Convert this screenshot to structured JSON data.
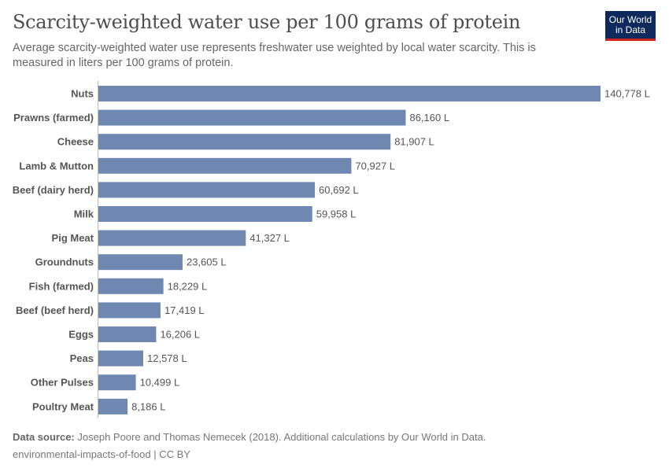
{
  "header": {
    "title": "Scarcity-weighted water use per 100 grams of protein",
    "subtitle": "Average scarcity-weighted water use represents freshwater use weighted by local water scarcity. This is measured in liters per 100 grams of protein.",
    "logo": "Our World in Data"
  },
  "chart_data": {
    "type": "bar",
    "orientation": "horizontal",
    "title": "Scarcity-weighted water use per 100 grams of protein",
    "unit": "L",
    "categories": [
      "Nuts",
      "Prawns (farmed)",
      "Cheese",
      "Lamb & Mutton",
      "Beef (dairy herd)",
      "Milk",
      "Pig Meat",
      "Groundnuts",
      "Fish (farmed)",
      "Beef (beef herd)",
      "Eggs",
      "Peas",
      "Other Pulses",
      "Poultry Meat"
    ],
    "values": [
      140778,
      86160,
      81907,
      70927,
      60692,
      59958,
      41327,
      23605,
      18229,
      17419,
      16206,
      12578,
      10499,
      8186
    ],
    "labels": [
      "140,778 L",
      "86,160 L",
      "81,907 L",
      "70,927 L",
      "60,692 L",
      "59,958 L",
      "41,327 L",
      "23,605 L",
      "18,229 L",
      "17,419 L",
      "16,206 L",
      "12,578 L",
      "10,499 L",
      "8,186 L"
    ],
    "bar_color": "#6f88b2",
    "grid": false
  },
  "footer": {
    "source_label": "Data source:",
    "source": "Joseph Poore and Thomas Nemecek (2018). Additional calculations by Our World in Data.",
    "license": "environmental-impacts-of-food | CC BY"
  }
}
